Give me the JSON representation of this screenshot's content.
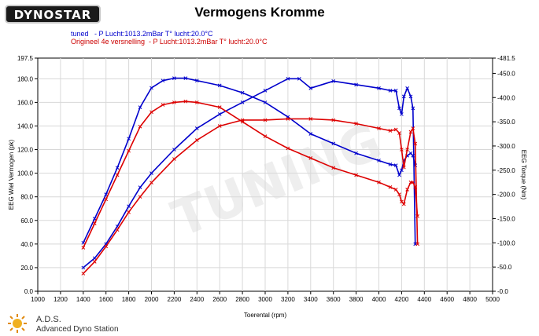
{
  "logo": {
    "text": "DYNOSTAR"
  },
  "chart_data": {
    "type": "line",
    "title": "Vermogens Kromme",
    "legend": [
      {
        "label": "tuned   - P Lucht:1013.2mBar T° lucht:20.0°C",
        "color": "#0000cc"
      },
      {
        "label": "Origineel 4e versnelling  - P Lucht:1013.2mBar T° lucht:20.0°C",
        "color": "#dd0000"
      }
    ],
    "xlabel": "Toerental (rpm)",
    "ylabel_left": "EEG Wiel Vermogen (pk)",
    "ylabel_right": "EEG Torque (Nm)",
    "xlim": [
      1000,
      5000
    ],
    "ylim_left": [
      0,
      197.5
    ],
    "ylim_right": [
      0,
      481.5
    ],
    "x_ticks": [
      "1000",
      "1200",
      "1400",
      "1600",
      "1800",
      "2000",
      "2200",
      "2400",
      "2600",
      "2800",
      "3000",
      "3200",
      "3400",
      "3600",
      "3800",
      "4000",
      "4200",
      "4400",
      "4600",
      "4800",
      "5000"
    ],
    "y_left_ticks": [
      "0.0",
      "20.0",
      "40.0",
      "60.0",
      "80.0",
      "100.0",
      "120.0",
      "140.0",
      "160.0",
      "180.0",
      "197.5"
    ],
    "y_right_ticks": [
      "0.0",
      "50.0",
      "100.0",
      "150.0",
      "200.0",
      "250.0",
      "300.0",
      "350.0",
      "400.0",
      "450.0",
      "481.5"
    ],
    "y_left_tick_values": [
      0,
      20,
      40,
      60,
      80,
      100,
      120,
      140,
      160,
      180,
      197.5
    ],
    "y_right_tick_values": [
      0,
      50,
      100,
      150,
      200,
      250,
      300,
      350,
      400,
      450,
      481.5
    ],
    "grid": true,
    "series": [
      {
        "name": "tuned",
        "quantity": "power",
        "axis": "left",
        "color": "#0000cc",
        "x": [
          1400,
          1500,
          1600,
          1700,
          1800,
          1900,
          2000,
          2200,
          2400,
          2600,
          2800,
          3000,
          3200,
          3300,
          3400,
          3600,
          3800,
          4000,
          4100,
          4150,
          4180,
          4200,
          4220,
          4250,
          4280,
          4300,
          4320
        ],
        "y": [
          20,
          28,
          40,
          55,
          72,
          88,
          100,
          120,
          138,
          150,
          160,
          170,
          180,
          180,
          172,
          178,
          175,
          172,
          170,
          170,
          155,
          150,
          165,
          172,
          165,
          155,
          40
        ]
      },
      {
        "name": "tuned",
        "quantity": "torque",
        "axis": "right",
        "color": "#0000cc",
        "x": [
          1400,
          1500,
          1600,
          1700,
          1800,
          1900,
          2000,
          2100,
          2200,
          2300,
          2400,
          2600,
          2800,
          3000,
          3200,
          3400,
          3600,
          3800,
          4000,
          4100,
          4150,
          4180,
          4200,
          4220,
          4250,
          4280,
          4300,
          4320
        ],
        "y": [
          100,
          150,
          200,
          255,
          315,
          380,
          420,
          435,
          440,
          440,
          435,
          425,
          410,
          390,
          360,
          325,
          305,
          285,
          270,
          262,
          260,
          240,
          250,
          270,
          280,
          285,
          280,
          260
        ]
      },
      {
        "name": "Origineel 4e versnelling",
        "quantity": "power",
        "axis": "left",
        "color": "#dd0000",
        "x": [
          1400,
          1500,
          1600,
          1700,
          1800,
          1900,
          2000,
          2200,
          2400,
          2600,
          2800,
          3000,
          3200,
          3400,
          3600,
          3800,
          4000,
          4100,
          4150,
          4180,
          4200,
          4220,
          4250,
          4280,
          4300,
          4320,
          4340
        ],
        "y": [
          15,
          25,
          38,
          52,
          67,
          80,
          92,
          112,
          128,
          140,
          145,
          145,
          146,
          146,
          145,
          142,
          138,
          136,
          137,
          134,
          120,
          105,
          120,
          135,
          138,
          125,
          40
        ]
      },
      {
        "name": "Origineel 4e versnelling",
        "quantity": "torque",
        "axis": "right",
        "color": "#dd0000",
        "x": [
          1400,
          1500,
          1600,
          1700,
          1800,
          1900,
          2000,
          2100,
          2200,
          2300,
          2400,
          2600,
          2800,
          3000,
          3200,
          3400,
          3600,
          3800,
          4000,
          4100,
          4150,
          4180,
          4200,
          4220,
          4250,
          4280,
          4300,
          4320,
          4340
        ],
        "y": [
          90,
          140,
          190,
          240,
          290,
          340,
          370,
          385,
          390,
          392,
          390,
          380,
          350,
          320,
          295,
          275,
          255,
          240,
          225,
          215,
          210,
          200,
          185,
          180,
          210,
          225,
          225,
          215,
          155
        ]
      }
    ]
  },
  "footer": {
    "line1": "A.D.S.",
    "line2": "Advanced Dyno Station"
  }
}
